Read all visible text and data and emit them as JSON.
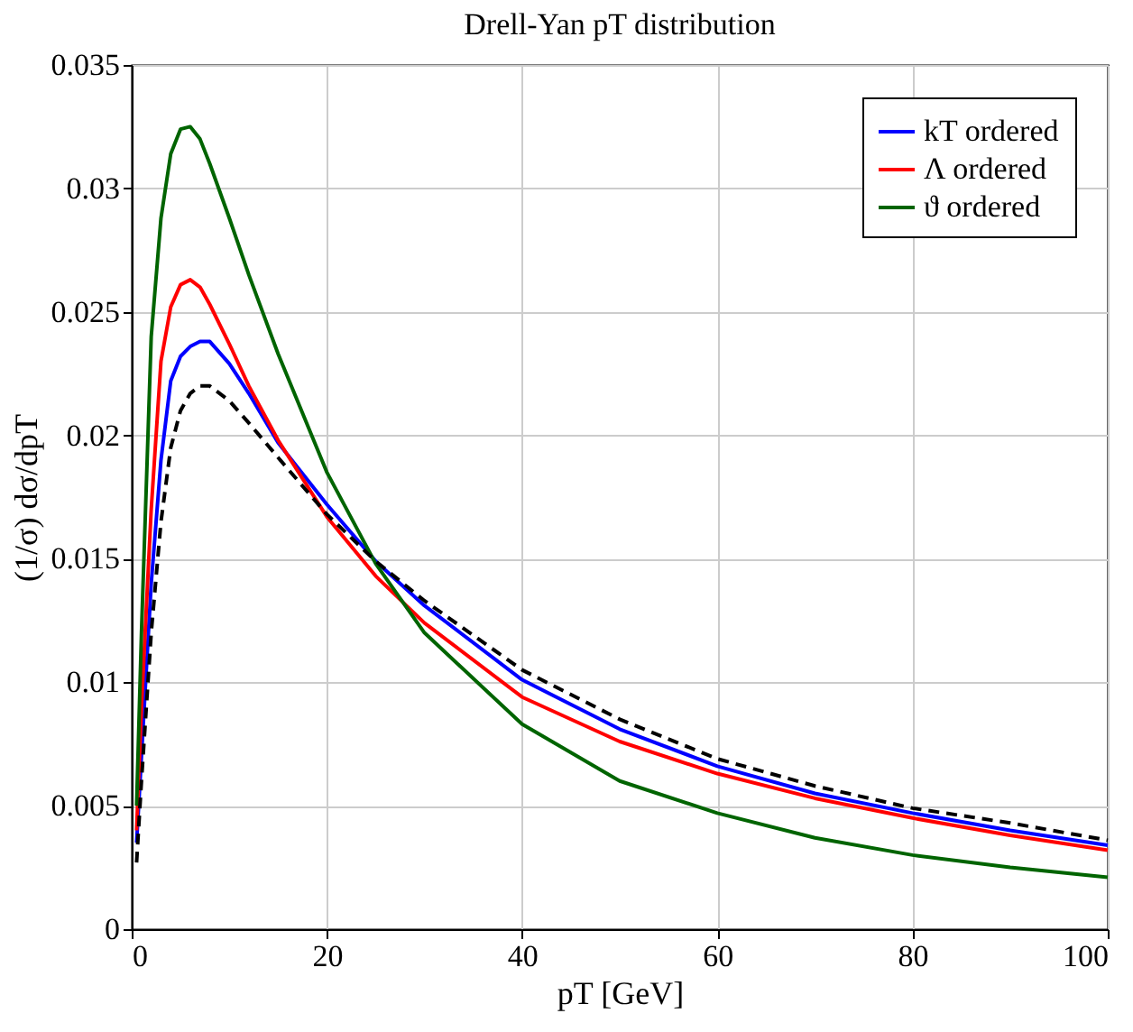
{
  "chart_data": {
    "type": "line",
    "title": "Drell-Yan pT distribution",
    "xlabel": "pT [GeV]",
    "ylabel": "(1/σ) dσ/dpT",
    "x": [
      0.5,
      1,
      2,
      3,
      4,
      5,
      6,
      7,
      8,
      10,
      12,
      15,
      20,
      25,
      30,
      40,
      50,
      60,
      70,
      80,
      90,
      100
    ],
    "series": [
      {
        "name": "kT ordered",
        "color": "#0000ff",
        "line_style": "solid",
        "values": [
          0.0035,
          0.007,
          0.014,
          0.019,
          0.0222,
          0.0232,
          0.0236,
          0.0238,
          0.0238,
          0.0229,
          0.0217,
          0.0197,
          0.0172,
          0.0149,
          0.0131,
          0.0101,
          0.0081,
          0.0066,
          0.0055,
          0.0047,
          0.004,
          0.0034
        ]
      },
      {
        "name": "Λ ordered",
        "color": "#ff0000",
        "line_style": "solid",
        "values": [
          0.004,
          0.009,
          0.017,
          0.023,
          0.0252,
          0.0261,
          0.0263,
          0.026,
          0.0253,
          0.0237,
          0.022,
          0.0198,
          0.0167,
          0.0143,
          0.0124,
          0.0094,
          0.0076,
          0.0063,
          0.0053,
          0.0045,
          0.0038,
          0.0032
        ]
      },
      {
        "name": "ϑ ordered",
        "color": "#006400",
        "line_style": "solid",
        "values": [
          0.005,
          0.012,
          0.024,
          0.0288,
          0.0314,
          0.0324,
          0.0325,
          0.032,
          0.031,
          0.0288,
          0.0265,
          0.0233,
          0.0185,
          0.0148,
          0.012,
          0.0083,
          0.006,
          0.0047,
          0.0037,
          0.003,
          0.0025,
          0.0021
        ]
      },
      {
        "color": "#000000",
        "line_style": "dashed",
        "values": [
          0.0027,
          0.006,
          0.012,
          0.0165,
          0.0195,
          0.021,
          0.0217,
          0.022,
          0.022,
          0.0214,
          0.0205,
          0.0191,
          0.0168,
          0.0149,
          0.0133,
          0.0105,
          0.0085,
          0.0069,
          0.0058,
          0.0049,
          0.0043,
          0.0036
        ]
      }
    ],
    "xlim": [
      0,
      100
    ],
    "xticks": [
      0,
      20,
      40,
      60,
      80,
      100
    ],
    "ylim": [
      0,
      0.035
    ],
    "yticks": [
      0,
      0.005,
      0.01,
      0.015,
      0.02,
      0.025,
      0.03,
      0.035
    ],
    "grid": true,
    "legend": "top right",
    "marker": "none"
  }
}
